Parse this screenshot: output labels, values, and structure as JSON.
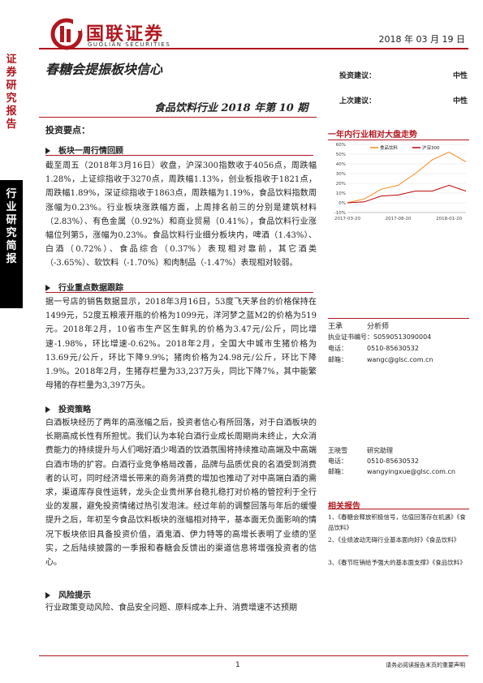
{
  "side": {
    "top_label": [
      "证",
      "券",
      "研",
      "究",
      "报",
      "告"
    ],
    "bottom_label": [
      "行",
      "业",
      "研",
      "究",
      "简",
      "报"
    ]
  },
  "header": {
    "logo_cn": "国联证券",
    "logo_en": "GUOLIAN SECURITIES",
    "date": "2018 年 03 月 19 日"
  },
  "title": {
    "main": "春糖会提振板块信心",
    "sub": "食品饮料行业 2018 年第 10 期"
  },
  "rating": [
    {
      "label": "投资建议：",
      "value": "中性"
    },
    {
      "label": "上次建议：",
      "value": "中性"
    }
  ],
  "key_points": "投资要点：",
  "sections": [
    {
      "heading": "板块一周行情回顾",
      "text": "截至周五（2018年3月16日）收盘，沪深300指数收于4056点，周跌幅1.28%，上证综指收于3270点，周跌幅1.13%，创业板指收于1821点，周跌幅1.89%，深证综指收于1863点，周跌幅为1.19%，食品饮料指数周涨幅为0.23%。行业板块涨跌幅方面，上周排名前三的分别是建筑材料（2.83%）、有色金属（0.92%）和商业贸易（0.41%），食品饮料行业涨幅位列第5，涨幅为0.23%。食品饮料行业细分板块内，啤酒（1.43%）、白酒（0.72%）、食品综合（0.37%）表现相对靠前，其它酒类（-3.65%）、软饮料（-1.70%）和肉制品（-1.47%）表现相对较弱。"
    },
    {
      "heading": "行业重点数据跟踪",
      "text": "据一号店的销售数据显示，2018年3月16日，53度飞天茅台的价格保持在1499元，52度五粮液开瓶的价格为1099元，洋河梦之蓝M2的价格为519元。2018年2月，10省市生产区生鲜乳的价格为3.47元/公斤，同比增速-1.98%，环比增速-0.62%。2018年2月，全国大中城市生猪价格为13.69元/公斤，环比下降9.9%；猪肉价格为24.98元/公斤，环比下降1.9%。2018年2月，生猪存栏量为33,237万头，同比下降7%，其中能繁母猪的存栏量为3,397万头。"
    },
    {
      "heading": "投资策略",
      "text": "白酒板块经历了两年的高涨幅之后，投资者信心有所回落，对于白酒板块的长期高成长性有所担忧。我们认为本轮白酒行业成长周期尚未终止，大众消费能力的持续提升与人们喝好酒少喝酒的饮酒氛围将持续推动高端及中高端白酒市场的扩容。白酒行业竞争格局改善，品牌与品质优良的名酒受到消费者的认可，同时经济增长带来的商务消费的增加也推动了对中高端白酒的需求，渠道库存良性运转，龙头企业贵州茅台稳扎稳打对价格的管控利于全行业的发展，避免投资情绪过热引发泡沫。经过年前的调整回落与年后的缓慢提升之后，年初至今食品饮料板块的涨幅相对持平，基本面无负面影响的情况下板块依旧具备投资价值，酒鬼酒、伊力特等的高增长表明了业绩的坚实，之后陆续披露的一季报和春糖会反馈出的渠道信息将增强投资者的信心。"
    },
    {
      "heading": "风险提示",
      "text": "行业政策变动风险、食品安全问题、原料成本上升、消费增速不达预期"
    }
  ],
  "chart": {
    "title": "一年内行业相对大盘走势",
    "legend": [
      "食品饮料",
      "沪深300"
    ],
    "y_ticks": [
      "60%",
      "50%",
      "40%",
      "30%",
      "20%",
      "10%",
      "0%",
      "-10%"
    ],
    "x_ticks": [
      "2017-03-20",
      "2017-08-20",
      "2018-01-20"
    ],
    "colors": {
      "food": "#f08a1c",
      "hs300": "#c00000"
    }
  },
  "chart_data": {
    "type": "line",
    "title": "一年内行业相对大盘走势",
    "xlabel": "",
    "ylabel": "",
    "ylim": [
      -10,
      60
    ],
    "x": [
      "2017-03-20",
      "2017-05-20",
      "2017-07-20",
      "2017-08-20",
      "2017-10-20",
      "2017-12-20",
      "2018-01-20",
      "2018-03-16"
    ],
    "series": [
      {
        "name": "食品饮料",
        "values": [
          0,
          4,
          14,
          18,
          30,
          44,
          52,
          42
        ]
      },
      {
        "name": "沪深300",
        "values": [
          0,
          1,
          7,
          8,
          12,
          12,
          18,
          12
        ]
      }
    ]
  },
  "analysts": [
    {
      "name": "王承",
      "role": "分析师",
      "cert_label": "执业证书编号：",
      "cert": "S0590513090004",
      "phone_label": "电话：",
      "phone": "0510-85630532",
      "email_label": "邮箱：",
      "email": "wangc@glsc.com.cn"
    },
    {
      "name": "王晓雪",
      "role": "研究助理",
      "phone_label": "电话：",
      "phone": "0510-85630532",
      "email_label": "邮箱：",
      "email": "wangyingxue@glsc.com.cn"
    }
  ],
  "related": {
    "title": "相关报告",
    "items": [
      "1、《春糖会释放积极信号，估值回落存在机遇》《食品饮料》",
      "2、《业绩波动无碍行业基本面向好》《食品饮料》",
      "3、《春节旺销给予强大的基本面支撑》《食品饮料》"
    ]
  },
  "footer": {
    "page": "1",
    "disclaimer": "请务必阅读报告末页的重要声明"
  }
}
